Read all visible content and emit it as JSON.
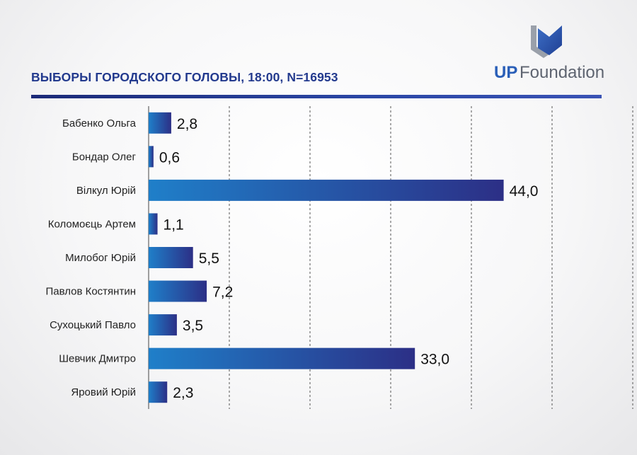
{
  "header": {
    "title": "ВЫБОРЫ ГОРОДСКОГО ГОЛОВЫ, 18:00, N=16953",
    "logo_text_bold": "UP",
    "logo_text_light": "Foundation"
  },
  "colors": {
    "title": "#233a8e",
    "bar_start": "#1f7fc9",
    "bar_end": "#2c2f86",
    "rule": "#233a8e",
    "logo_blue": "#2a5fb8",
    "logo_gray": "#5e6470"
  },
  "icons": {
    "logo_mark": "up-foundation-logo-icon"
  },
  "chart_data": {
    "type": "bar",
    "orientation": "horizontal",
    "categories": [
      "Бабенко Ольга",
      "Бондар Олег",
      "Вілкул Юрій",
      "Коломоєць Артем",
      "Милобог Юрій",
      "Павлов Костянтин",
      "Сухоцький Павло",
      "Шевчик Дмитро",
      "Яровий Юрій"
    ],
    "values": [
      2.8,
      0.6,
      44.0,
      1.1,
      5.5,
      7.2,
      3.5,
      33.0,
      2.3
    ],
    "labels": [
      "2,8",
      "0,6",
      "44,0",
      "1,1",
      "5,5",
      "7,2",
      "3,5",
      "33,0",
      "2,3"
    ],
    "xlim": [
      0,
      60
    ],
    "gridlines": [
      10,
      20,
      30,
      40,
      50,
      60
    ],
    "grid": true,
    "title": "ВЫБОРЫ ГОРОДСКОГО ГОЛОВЫ, 18:00, N=16953"
  }
}
